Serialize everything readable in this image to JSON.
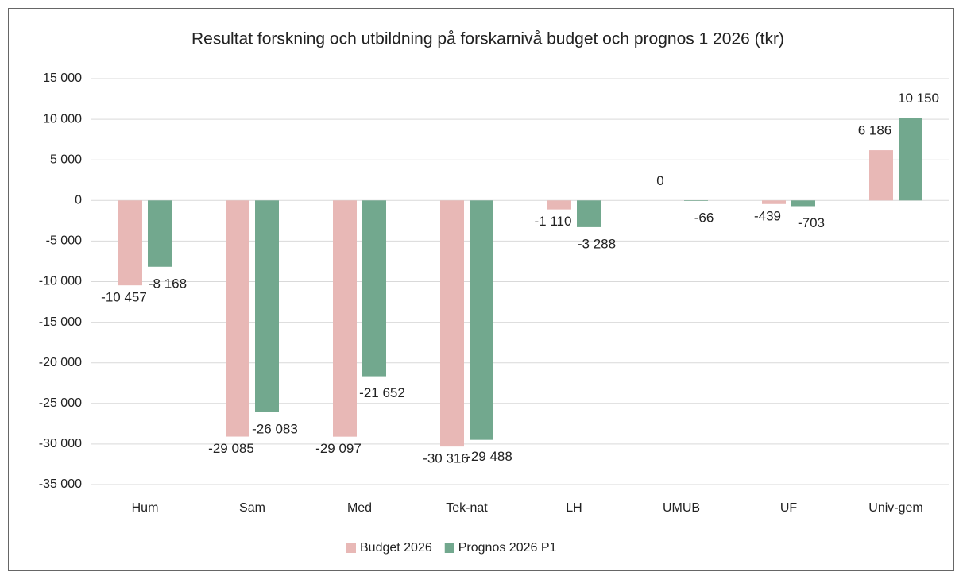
{
  "chart_data": {
    "type": "bar",
    "title": "Resultat forskning och utbildning på forskarnivå budget och prognos 1 2026 (tkr)",
    "categories": [
      "Hum",
      "Sam",
      "Med",
      "Tek-nat",
      "LH",
      "UMUB",
      "UF",
      "Univ-gem"
    ],
    "series": [
      {
        "name": "Budget 2026",
        "color": "#e8b8b6",
        "values": [
          -10457,
          -29085,
          -29097,
          -30316,
          -1110,
          0,
          -439,
          6186
        ],
        "value_labels": [
          "-10 457",
          "-29 085",
          "-29 097",
          "-30 316",
          "-1 110",
          "0",
          "-439",
          "6 186"
        ]
      },
      {
        "name": "Prognos 2026 P1",
        "color": "#72a88e",
        "values": [
          -8168,
          -26083,
          -21652,
          -29488,
          -3288,
          -66,
          -703,
          10150
        ],
        "value_labels": [
          "-8 168",
          "-26 083",
          "-21 652",
          "-29 488",
          "-3 288",
          "-66",
          "-703",
          "10 150"
        ]
      }
    ],
    "ylim": [
      -35000,
      15000
    ],
    "yticks": [
      {
        "value": 15000,
        "label": "15 000"
      },
      {
        "value": 10000,
        "label": "10 000"
      },
      {
        "value": 5000,
        "label": "5 000"
      },
      0,
      {
        "value": -5000,
        "label": "-5 000"
      },
      {
        "value": -10000,
        "label": "-10 000"
      },
      {
        "value": -15000,
        "label": "-15 000"
      },
      {
        "value": -20000,
        "label": "-20 000"
      },
      {
        "value": -25000,
        "label": "-25 000"
      },
      {
        "value": -30000,
        "label": "-30 000"
      },
      {
        "value": -35000,
        "label": "-35 000"
      }
    ],
    "grid": true,
    "legend": "bottom"
  }
}
